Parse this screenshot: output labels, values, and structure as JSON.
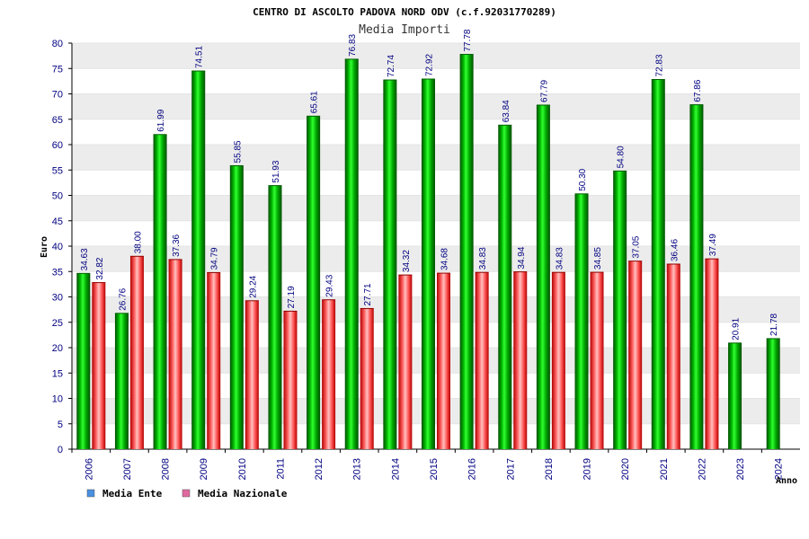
{
  "chart_data": {
    "type": "bar",
    "title": "CENTRO DI ASCOLTO PADOVA NORD ODV (c.f.92031770289)",
    "subtitle": "Media Importi",
    "ylabel": "Euro",
    "xlabel": "Anno",
    "ylim": [
      0,
      80
    ],
    "ytick_step": 5,
    "grid": "horizontal bands",
    "legend_position": "bottom-left",
    "categories": [
      "2006",
      "2007",
      "2008",
      "2009",
      "2010",
      "2011",
      "2012",
      "2013",
      "2014",
      "2015",
      "2016",
      "2017",
      "2018",
      "2019",
      "2020",
      "2021",
      "2022",
      "2023",
      "2024"
    ],
    "series": [
      {
        "name": "Media Ente",
        "legend_color": "#4a90e2",
        "bar_color": "#00a000",
        "values": [
          34.63,
          26.76,
          61.99,
          74.51,
          55.85,
          51.93,
          65.61,
          76.83,
          72.74,
          72.92,
          77.78,
          63.84,
          67.79,
          50.3,
          54.8,
          72.83,
          67.86,
          20.91,
          21.78
        ],
        "labels": [
          "34.63",
          "26.76",
          "61.99",
          "74.51",
          "55.85",
          "51.93",
          "65.61",
          "76.83",
          "72.74",
          "72.92",
          "77.78",
          "63.84",
          "67.79",
          "50.30",
          "54.80",
          "72.83",
          "67.86",
          "20.91",
          "21.78"
        ]
      },
      {
        "name": "Media Nazionale",
        "legend_color": "#e06aa0",
        "bar_color": "#e02020",
        "values": [
          32.82,
          38.0,
          37.36,
          34.79,
          29.24,
          27.19,
          29.43,
          27.71,
          34.32,
          34.68,
          34.83,
          34.94,
          34.83,
          34.85,
          37.05,
          36.46,
          37.49,
          null,
          null
        ],
        "labels": [
          "32.82",
          "38.00",
          "37.36",
          "34.79",
          "29.24",
          "27.19",
          "29.43",
          "27.71",
          "34.32",
          "34.68",
          "34.83",
          "34.94",
          "34.83",
          "34.85",
          "37.05",
          "36.46",
          "37.49",
          null,
          null
        ]
      }
    ]
  }
}
